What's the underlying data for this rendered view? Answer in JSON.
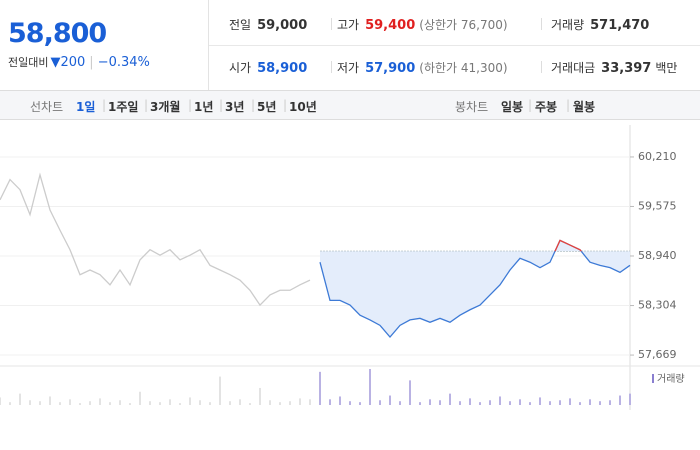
{
  "header": {
    "price": "58,800",
    "change_label": "전일대비",
    "change": "▼200",
    "change_pct": "−0.34%",
    "stats": [
      {
        "label": "전일",
        "value": "59,000"
      },
      {
        "label": "고가",
        "value": "59,400",
        "note": "(상한가 76,700)"
      },
      {
        "label": "거래량",
        "value": "571,470"
      },
      {
        "label": "시가",
        "value": "58,900"
      },
      {
        "label": "저가",
        "value": "57,900",
        "note": "(하한가 41,300)"
      },
      {
        "label": "거래대금",
        "value": "33,397",
        "unit": "백만"
      }
    ]
  },
  "tabs": {
    "line_label": "선차트",
    "line_periods": [
      "1일",
      "1주일",
      "3개월",
      "1년",
      "3년",
      "5년",
      "10년"
    ],
    "candle_label": "봉차트",
    "candle_periods": [
      "일봉",
      "주봉",
      "월봉"
    ]
  },
  "chart_data": {
    "type": "line",
    "ylim": [
      57580,
      60620
    ],
    "yticks": [
      {
        "value": 57669,
        "label": "57,669"
      },
      {
        "value": 58304,
        "label": "58,304"
      },
      {
        "value": 58940,
        "label": "58,940"
      },
      {
        "value": 59575,
        "label": "59,575"
      },
      {
        "value": 60210,
        "label": "60,210"
      }
    ],
    "reference": 59000,
    "fill_color": "#e4edfb",
    "above_color": "#e8423a",
    "series": [
      {
        "color": "#cccccc",
        "values": [
          59660,
          59920,
          59790,
          59470,
          59980,
          59530,
          59270,
          59020,
          58700,
          58760,
          58700,
          58570,
          58760,
          58570,
          58890,
          59020,
          58950,
          59020,
          58890,
          58950,
          59020,
          58820,
          58760,
          58700,
          58630,
          58500,
          58310,
          58440,
          58500,
          58500,
          58570,
          58630,
          null,
          null,
          null,
          null,
          null,
          null,
          null,
          null,
          null,
          null,
          null,
          null,
          null,
          null,
          null,
          null,
          null,
          null,
          null,
          null,
          null,
          null,
          null,
          null,
          null,
          null,
          null,
          null,
          null,
          null,
          null,
          null
        ]
      },
      {
        "color": "#3d7ad6",
        "values": [
          null,
          null,
          null,
          null,
          null,
          null,
          null,
          null,
          null,
          null,
          null,
          null,
          null,
          null,
          null,
          null,
          null,
          null,
          null,
          null,
          null,
          null,
          null,
          null,
          null,
          null,
          null,
          null,
          null,
          null,
          null,
          null,
          58860,
          58370,
          58370,
          58310,
          58180,
          58120,
          58050,
          57900,
          58050,
          58120,
          58140,
          58090,
          58140,
          58090,
          58180,
          58250,
          58310,
          58440,
          58570,
          58760,
          58910,
          58860,
          58790,
          58860,
          59140,
          59080,
          59020,
          58860,
          58820,
          58790,
          58730,
          58820
        ]
      }
    ],
    "volume": {
      "label": "거래량",
      "color": "#d0d0d0",
      "current_color": "#8a7fd0",
      "values": [
        8,
        3,
        12,
        5,
        4,
        9,
        3,
        6,
        2,
        4,
        7,
        3,
        5,
        2,
        14,
        4,
        3,
        6,
        2,
        8,
        5,
        3,
        30,
        4,
        6,
        2,
        18,
        5,
        3,
        4,
        7,
        6,
        35,
        6,
        9,
        4,
        3,
        38,
        5,
        10,
        4,
        26,
        3,
        6,
        5,
        12,
        4,
        7,
        3,
        5,
        9,
        4,
        6,
        3,
        8,
        4,
        5,
        7,
        3,
        6,
        4,
        5,
        10,
        12
      ]
    }
  }
}
